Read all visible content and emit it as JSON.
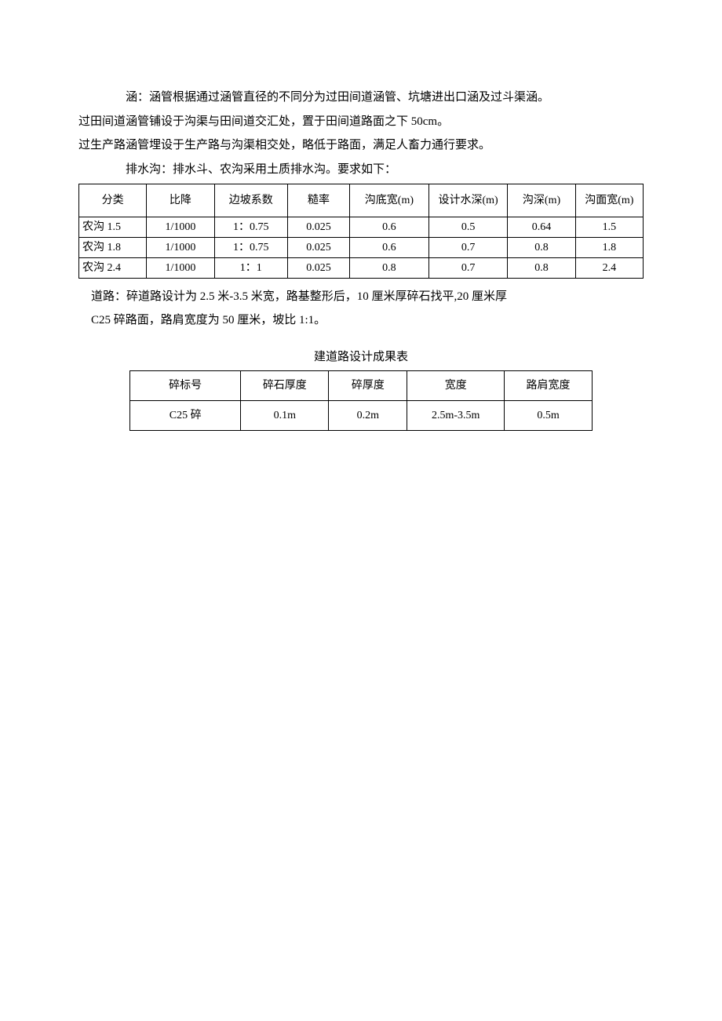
{
  "paragraphs": {
    "p1": "涵：涵管根据通过涵管直径的不同分为过田间道涵管、坑塘进出口涵及过斗渠涵。",
    "p2": "过田间道涵管铺设于沟渠与田间道交汇处，置于田间道路面之下 50cm。",
    "p3": "过生产路涵管埋设于生产路与沟渠相交处，略低于路面，满足人畜力通行要求。",
    "p4": "排水沟：排水斗、农沟采用土质排水沟。要求如下："
  },
  "table1": {
    "headers": [
      "分类",
      "比降",
      "边坡系数",
      "糙率",
      "沟底宽(m)",
      "设计水深(m)",
      "沟深(m)",
      "沟面宽(m)"
    ],
    "rows": [
      [
        "农沟 1.5",
        "1/1000",
        "1：0.75",
        "0.025",
        "0.6",
        "0.5",
        "0.64",
        "1.5"
      ],
      [
        "农沟 1.8",
        "1/1000",
        "1：0.75",
        "0.025",
        "0.6",
        "0.7",
        "0.8",
        "1.8"
      ],
      [
        "农沟 2.4",
        "1/1000",
        "1：1",
        "0.025",
        "0.8",
        "0.7",
        "0.8",
        "2.4"
      ]
    ],
    "col_widths": [
      "12%",
      "12%",
      "13%",
      "11%",
      "14%",
      "14%",
      "12%",
      "12%"
    ]
  },
  "road": {
    "line1": "道路：碎道路设计为 2.5 米-3.5 米宽，路基整形后，10 厘米厚碎石找平,20 厘米厚",
    "line2": "C25 碎路面，路肩宽度为 50 厘米，坡比 1:1。"
  },
  "table2": {
    "title": "建道路设计成果表",
    "headers": [
      "碎标号",
      "碎石厚度",
      "碎厚度",
      "宽度",
      "路肩宽度"
    ],
    "rows": [
      [
        "C25 碎",
        "0.1m",
        "0.2m",
        "2.5m-3.5m",
        "0.5m"
      ]
    ],
    "col_widths": [
      "24%",
      "19%",
      "17%",
      "21%",
      "19%"
    ]
  }
}
